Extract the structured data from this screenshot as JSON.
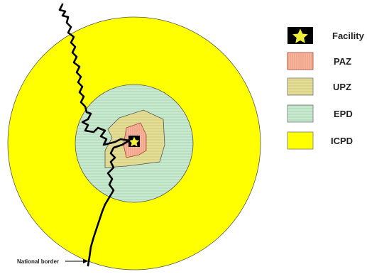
{
  "colors": {
    "icpd": "#ffff00",
    "epd": "#bfe3c4",
    "upz": "#ddd98a",
    "paz": "#f3a98a",
    "facility_box": "#000000",
    "facility_star": "#f2ef3a",
    "border_line": "#000000"
  },
  "legend": {
    "items": [
      {
        "key": "facility",
        "label": "Facility",
        "icon": "star-icon"
      },
      {
        "key": "paz",
        "label": "PAZ"
      },
      {
        "key": "upz",
        "label": "UPZ"
      },
      {
        "key": "epd",
        "label": "EPD"
      },
      {
        "key": "icpd",
        "label": "ICPD"
      }
    ]
  },
  "annotation": {
    "national_border": "National border"
  }
}
